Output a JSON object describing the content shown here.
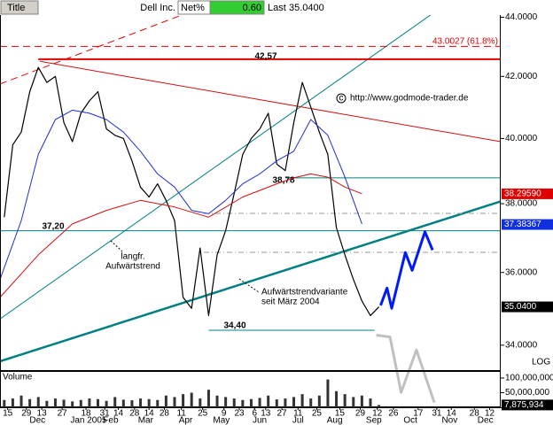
{
  "header": {
    "title_button": "Title",
    "symbol": "Dell Inc.",
    "net_label": "Net%",
    "net_value": "0.60",
    "last_label": "Last",
    "last_value": "35.0400"
  },
  "chart_data": {
    "type": "line",
    "log_scale": true,
    "xlim": [
      -0.5,
      58.3
    ],
    "ylim": [
      33.34,
      44.6
    ],
    "yticks": [
      {
        "value": 34,
        "label": "34.0000"
      },
      {
        "value": 36,
        "label": "36.0000"
      },
      {
        "value": 38,
        "label": "38.0000"
      },
      {
        "value": 40,
        "label": "40.0000"
      },
      {
        "value": 42,
        "label": "42.0000"
      },
      {
        "value": 44,
        "label": "44.0000"
      }
    ],
    "scale_label": "LOG",
    "xticks": [
      {
        "value": 0.4,
        "label": "15"
      },
      {
        "value": 2.6,
        "label": "29"
      },
      {
        "value": 4.4,
        "label": "13"
      },
      {
        "value": 6.8,
        "label": "27"
      },
      {
        "value": 9.6,
        "label": "18"
      },
      {
        "value": 11.8,
        "label": "31"
      },
      {
        "value": 13.4,
        "label": "14"
      },
      {
        "value": 15.3,
        "label": "28"
      },
      {
        "value": 17.0,
        "label": "14"
      },
      {
        "value": 18.8,
        "label": "28"
      },
      {
        "value": 20.8,
        "label": "11"
      },
      {
        "value": 23.3,
        "label": "25"
      },
      {
        "value": 25.8,
        "label": "9"
      },
      {
        "value": 27.6,
        "label": "23"
      },
      {
        "value": 29.4,
        "label": "6"
      },
      {
        "value": 30.7,
        "label": "13"
      },
      {
        "value": 32.6,
        "label": "27"
      },
      {
        "value": 34.5,
        "label": "11"
      },
      {
        "value": 36.7,
        "label": "25"
      },
      {
        "value": 39.4,
        "label": "15"
      },
      {
        "value": 41.8,
        "label": "29"
      },
      {
        "value": 43.8,
        "label": "12"
      },
      {
        "value": 45.7,
        "label": "26"
      },
      {
        "value": 48.6,
        "label": "17"
      },
      {
        "value": 50.8,
        "label": "31"
      },
      {
        "value": 52.5,
        "label": "14"
      },
      {
        "value": 55.2,
        "label": "28"
      },
      {
        "value": 57.0,
        "label": "12"
      }
    ],
    "month_ticks": [
      {
        "value": 3.9,
        "label": "Dec"
      },
      {
        "value": 9.9,
        "label": "Jan 2005"
      },
      {
        "value": 12.5,
        "label": "Feb"
      },
      {
        "value": 16.6,
        "label": "Mar"
      },
      {
        "value": 21.3,
        "label": "Apr"
      },
      {
        "value": 25.5,
        "label": "May"
      },
      {
        "value": 30.0,
        "label": "Jun"
      },
      {
        "value": 34.5,
        "label": "Jul"
      },
      {
        "value": 38.8,
        "label": "Aug"
      },
      {
        "value": 43.4,
        "label": "Sep"
      },
      {
        "value": 47.7,
        "label": "Oct"
      },
      {
        "value": 52.3,
        "label": "Nov"
      },
      {
        "value": 56.5,
        "label": "Dec"
      }
    ],
    "series": [
      {
        "name": "Dell Inc.",
        "color": "#000000",
        "width": 1.2,
        "x": [
          0,
          1,
          2,
          3,
          4,
          5,
          6,
          7,
          8,
          9,
          10,
          11,
          12,
          13,
          14,
          15,
          16,
          17,
          18,
          19,
          20,
          21,
          22,
          23,
          24,
          25,
          26,
          27,
          28,
          29,
          30,
          31,
          32,
          33,
          34,
          35,
          36,
          37,
          38,
          39,
          40,
          41,
          42,
          43,
          44
        ],
        "values": [
          37.6,
          39.8,
          40.2,
          41.5,
          42.3,
          41.8,
          42.0,
          40.5,
          39.9,
          40.8,
          41.2,
          41.5,
          40.3,
          40.1,
          40.0,
          39.3,
          38.5,
          38.2,
          38.6,
          38.1,
          37.5,
          35.3,
          35.0,
          36.7,
          34.8,
          36.5,
          37.2,
          38.3,
          39.5,
          40.0,
          40.3,
          40.8,
          39.2,
          39.0,
          40.5,
          41.8,
          41.0,
          40.2,
          39.5,
          37.3,
          36.5,
          35.8,
          35.2,
          34.8,
          35.04
        ]
      },
      {
        "color": "#2030d0",
        "width": 1,
        "x": [
          -0.5,
          2,
          4,
          6,
          8,
          10,
          12,
          14,
          16,
          18,
          20,
          22,
          24,
          26,
          28,
          30,
          32,
          34,
          36,
          38,
          40,
          42
        ],
        "values": [
          35.8,
          37.5,
          39.5,
          40.6,
          40.9,
          40.8,
          40.6,
          40.2,
          39.6,
          38.9,
          38.5,
          37.8,
          37.7,
          38.1,
          38.6,
          38.9,
          39.3,
          39.6,
          40.6,
          40.1,
          38.8,
          37.4
        ]
      },
      {
        "color": "#d01010",
        "width": 1,
        "x": [
          -0.5,
          4,
          8,
          12,
          16,
          20,
          24,
          28,
          32,
          34,
          36,
          38,
          40,
          42
        ],
        "values": [
          35.3,
          36.5,
          37.4,
          37.8,
          38.1,
          37.9,
          37.6,
          38.2,
          38.6,
          38.78,
          38.9,
          38.8,
          38.5,
          38.3
        ]
      },
      {
        "color": "#0018ff",
        "width": 3,
        "x": [
          44.2,
          44.95,
          45.5,
          47.1,
          47.9,
          49.4,
          50.3
        ],
        "values": [
          35.08,
          35.56,
          35.0,
          36.57,
          36.06,
          37.17,
          36.64
        ]
      },
      {
        "color": "#c0c0c0",
        "width": 3,
        "x": [
          43.7,
          45.3,
          46.6,
          48.4,
          50.5
        ],
        "values": [
          34.27,
          34.22,
          32.76,
          33.87,
          32.5
        ]
      }
    ],
    "lines": [
      {
        "x": [
          -0.5,
          58.3
        ],
        "values": [
          33.57,
          38.07
        ],
        "color": "#008080",
        "width": 2.5
      },
      {
        "x": [
          -0.5,
          52.55
        ],
        "values": [
          34.71,
          44.6
        ],
        "color": "#008080",
        "width": 1
      },
      {
        "x": [
          -0.5,
          25.5
        ],
        "values": [
          41.75,
          44.6
        ],
        "color": "#e00000",
        "width": 1,
        "dash": "8 5"
      },
      {
        "x": [
          4.2,
          58.3
        ],
        "values": [
          42.5,
          39.9
        ],
        "color": "#d01010",
        "width": 1
      }
    ],
    "levels": [
      {
        "value": 43.0027,
        "label": "43.0027 (61.8%)",
        "color": "#e00000",
        "width": 1,
        "dash": "8 5",
        "from": -0.5,
        "to": 58.3
      },
      {
        "value": 42.57,
        "label": "42,57",
        "color": "#e00000",
        "width": 2,
        "from": 4.0,
        "to": 58.3
      },
      {
        "value": 38.78,
        "label": "38,78",
        "color": "#008080",
        "width": 1,
        "from": 33.0,
        "to": 58.3
      },
      {
        "value": 37.2,
        "label": "37,20",
        "color": "#008080",
        "width": 1,
        "from": -0.5,
        "to": 58.3
      },
      {
        "value": 34.4,
        "label": "34,40",
        "color": "#008080",
        "width": 1,
        "from": 24.0,
        "to": 43.5
      }
    ],
    "tags": [
      {
        "value": 38.2959,
        "label": "38.29590",
        "color": "#e00000"
      },
      {
        "value": 37.38367,
        "label": "37.38367",
        "color": "#1030e0"
      },
      {
        "value": 35.04,
        "label": "35.0400",
        "color": "#000000"
      }
    ],
    "annotations": [
      {
        "lines": [
          "langfr.",
          "Aufwärtstrend"
        ]
      },
      {
        "lines": [
          "Aufwärtstrendvariante",
          "seit März 2004"
        ]
      },
      {
        "lines": [
          "http://www.godmode-trader.de"
        ]
      }
    ],
    "volume": {
      "title": "Volume",
      "ylim": [
        0,
        121000000
      ],
      "yticks": [
        {
          "value": 50000000,
          "label": "50,000,000"
        },
        {
          "value": 100000000,
          "label": "100,000,000"
        }
      ],
      "last": {
        "value": 7875934,
        "label": "7,875,934"
      },
      "values": [
        25000000,
        30000000,
        40000000,
        28000000,
        35000000,
        22000000,
        30000000,
        26000000,
        20000000,
        25000000,
        30000000,
        28000000,
        22000000,
        35000000,
        26000000,
        24000000,
        30000000,
        28000000,
        25000000,
        40000000,
        35000000,
        45000000,
        50000000,
        30000000,
        60000000,
        40000000,
        35000000,
        30000000,
        25000000,
        28000000,
        32000000,
        40000000,
        27000000,
        30000000,
        35000000,
        45000000,
        30000000,
        40000000,
        95000000,
        55000000,
        45000000,
        35000000,
        40000000,
        30000000,
        7875934
      ]
    }
  }
}
